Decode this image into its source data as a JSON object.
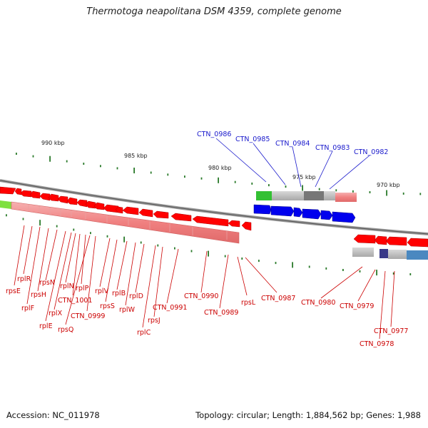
{
  "title": "Thermotoga neapolitana DSM 4359, complete genome",
  "footer": {
    "accession": "Accession: NC_011978",
    "summary": "Topology: circular; Length: 1,884,562 bp; Genes: 1,988"
  },
  "ruler": [
    "990 kbp",
    "985 kbp",
    "980 kbp",
    "975 kbp",
    "970 kbp"
  ],
  "colors": {
    "gene_red": "#ff0000",
    "gene_blue": "#0000ee",
    "cds_pink": "#f08080",
    "backbone": "#808080",
    "label_red": "#cc0000",
    "label_blue": "#1a1acc",
    "tick_green": "#2a7a2a"
  },
  "gene_labels_blue": [
    "CTN_0986",
    "CTN_0985",
    "CTN_0984",
    "CTN_0983",
    "CTN_0982"
  ],
  "gene_labels_red": [
    "rpsE",
    "rplR",
    "rplF",
    "rpsH",
    "rpsN",
    "rplE",
    "rplX",
    "rplN",
    "CTN_1001",
    "rplP",
    "rpsQ",
    "CTN_0999",
    "rplV",
    "rpsS",
    "rplB",
    "rplW",
    "rplD",
    "rplC",
    "rpsJ",
    "CTN_0991",
    "CTN_0990",
    "CTN_0989",
    "rpsL",
    "CTN_0987",
    "CTN_0980",
    "CTN_0979",
    "CTN_0977",
    "CTN_0978"
  ]
}
